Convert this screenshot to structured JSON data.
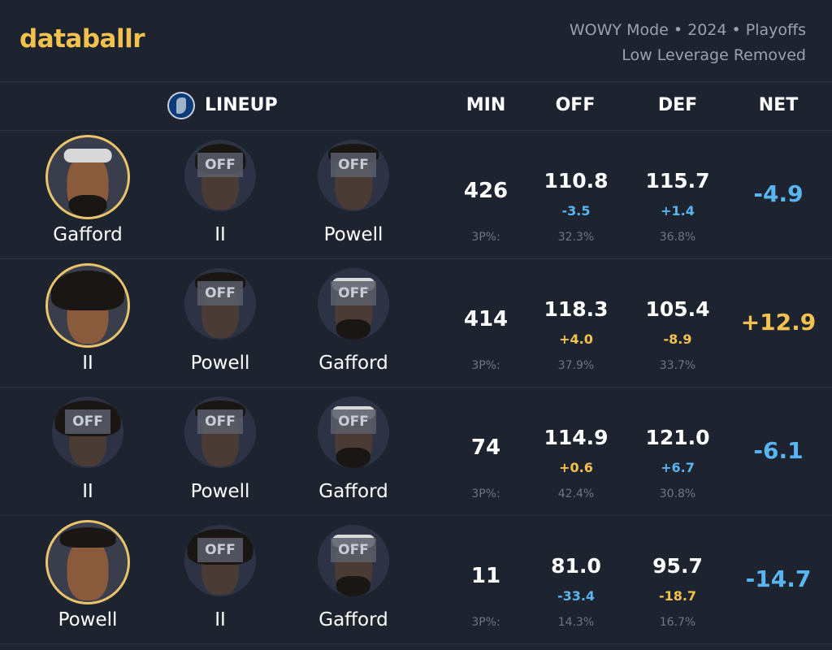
{
  "brand": {
    "name": "databallr"
  },
  "meta": {
    "line1": "WOWY Mode • 2024 • Playoffs",
    "line2": "Low Leverage Removed"
  },
  "columns": {
    "lineup": "LINEUP",
    "min": "MIN",
    "off": "OFF",
    "def": "DEF",
    "net": "NET"
  },
  "team_icon": "mavericks-logo-icon",
  "three_pt_label": "3P%:",
  "off_label": "OFF",
  "colors": {
    "positive": "#f2c14e",
    "negative": "#5ab4f0",
    "accent": "#e8c46a"
  },
  "rows": [
    {
      "players": [
        {
          "name": "Gafford",
          "on": true
        },
        {
          "name": "II",
          "on": false
        },
        {
          "name": "Powell",
          "on": false
        }
      ],
      "min": "426",
      "off": "110.8",
      "off_delta": "-3.5",
      "def": "115.7",
      "def_delta": "+1.4",
      "off_3p": "32.3%",
      "def_3p": "36.8%",
      "net": "-4.9"
    },
    {
      "players": [
        {
          "name": "II",
          "on": true
        },
        {
          "name": "Powell",
          "on": false
        },
        {
          "name": "Gafford",
          "on": false
        }
      ],
      "min": "414",
      "off": "118.3",
      "off_delta": "+4.0",
      "def": "105.4",
      "def_delta": "-8.9",
      "off_3p": "37.9%",
      "def_3p": "33.7%",
      "net": "+12.9"
    },
    {
      "players": [
        {
          "name": "II",
          "on": false
        },
        {
          "name": "Powell",
          "on": false
        },
        {
          "name": "Gafford",
          "on": false
        }
      ],
      "min": "74",
      "off": "114.9",
      "off_delta": "+0.6",
      "def": "121.0",
      "def_delta": "+6.7",
      "off_3p": "42.4%",
      "def_3p": "30.8%",
      "net": "-6.1"
    },
    {
      "players": [
        {
          "name": "Powell",
          "on": true
        },
        {
          "name": "II",
          "on": false
        },
        {
          "name": "Gafford",
          "on": false
        }
      ],
      "min": "11",
      "off": "81.0",
      "off_delta": "-33.4",
      "def": "95.7",
      "def_delta": "-18.7",
      "off_3p": "14.3%",
      "def_3p": "16.7%",
      "net": "-14.7"
    }
  ]
}
